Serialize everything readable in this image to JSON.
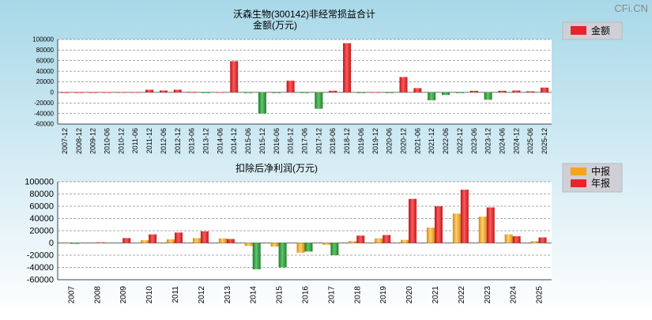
{
  "watermark": "CFi.CN",
  "colors": {
    "bg_top": "#a8d8e8",
    "bg_bottom": "#ffffff",
    "red": "#e8242a",
    "orange": "#f5a41c",
    "green": "#2e9e3a"
  },
  "chart_data": [
    {
      "type": "bar",
      "title": "沃森生物(300142)非经常损益合计",
      "subtitle": "金额(万元)",
      "legend": [
        {
          "name": "金额",
          "color": "#e8242a"
        }
      ],
      "legend_position": "top-right",
      "ylim": [
        -60000,
        100000
      ],
      "yticks": [
        100000,
        80000,
        60000,
        40000,
        20000,
        0,
        -20000,
        -40000,
        -60000
      ],
      "grid": true,
      "categories": [
        "2007-12",
        "2008-12",
        "2009-12",
        "2010-06",
        "2010-12",
        "2011-06",
        "2011-12",
        "2012-06",
        "2012-12",
        "2013-06",
        "2013-12",
        "2014-06",
        "2014-12",
        "2015-06",
        "2015-12",
        "2016-06",
        "2016-12",
        "2017-06",
        "2017-12",
        "2018-06",
        "2018-12",
        "2019-06",
        "2019-12",
        "2020-06",
        "2020-12",
        "2021-06",
        "2021-12",
        "2022-06",
        "2022-12",
        "2023-06",
        "2023-12",
        "2024-06",
        "2024-12",
        "2025-06",
        "2025-12"
      ],
      "values": [
        200,
        300,
        300,
        400,
        500,
        500,
        5000,
        3500,
        5000,
        1000,
        -1000,
        500,
        59000,
        -500,
        -40000,
        -500,
        22000,
        -1000,
        -31000,
        3000,
        93000,
        -500,
        500,
        -500,
        29000,
        8000,
        -15000,
        -5000,
        -500,
        3000,
        -14000,
        3000,
        3500,
        2000,
        9000
      ]
    },
    {
      "type": "bar",
      "title": "扣除后净利润(万元)",
      "legend": [
        {
          "name": "中报",
          "color": "#f5a41c"
        },
        {
          "name": "年报",
          "color": "#e8242a"
        }
      ],
      "legend_position": "top-right",
      "ylim": [
        -60000,
        100000
      ],
      "yticks": [
        100000,
        80000,
        60000,
        40000,
        20000,
        0,
        -20000,
        -40000,
        -60000
      ],
      "grid": true,
      "categories": [
        "2007",
        "2008",
        "2009",
        "2010",
        "2011",
        "2012",
        "2013",
        "2014",
        "2015",
        "2016",
        "2017",
        "2018",
        "2019",
        "2020",
        "2021",
        "2022",
        "2023",
        "2024",
        "2025"
      ],
      "series": [
        {
          "name": "中报",
          "values": [
            0,
            0,
            0,
            4500,
            6000,
            8000,
            7500,
            -5000,
            -6000,
            -16000,
            -3000,
            3000,
            7500,
            5000,
            25000,
            48000,
            43000,
            14000,
            3000
          ]
        },
        {
          "name": "年报",
          "values": [
            -1500,
            1000,
            8000,
            14000,
            17000,
            19000,
            6500,
            -43000,
            -40000,
            -14000,
            -20000,
            12000,
            13000,
            72000,
            60000,
            87000,
            58000,
            11000,
            9000
          ]
        }
      ]
    }
  ]
}
